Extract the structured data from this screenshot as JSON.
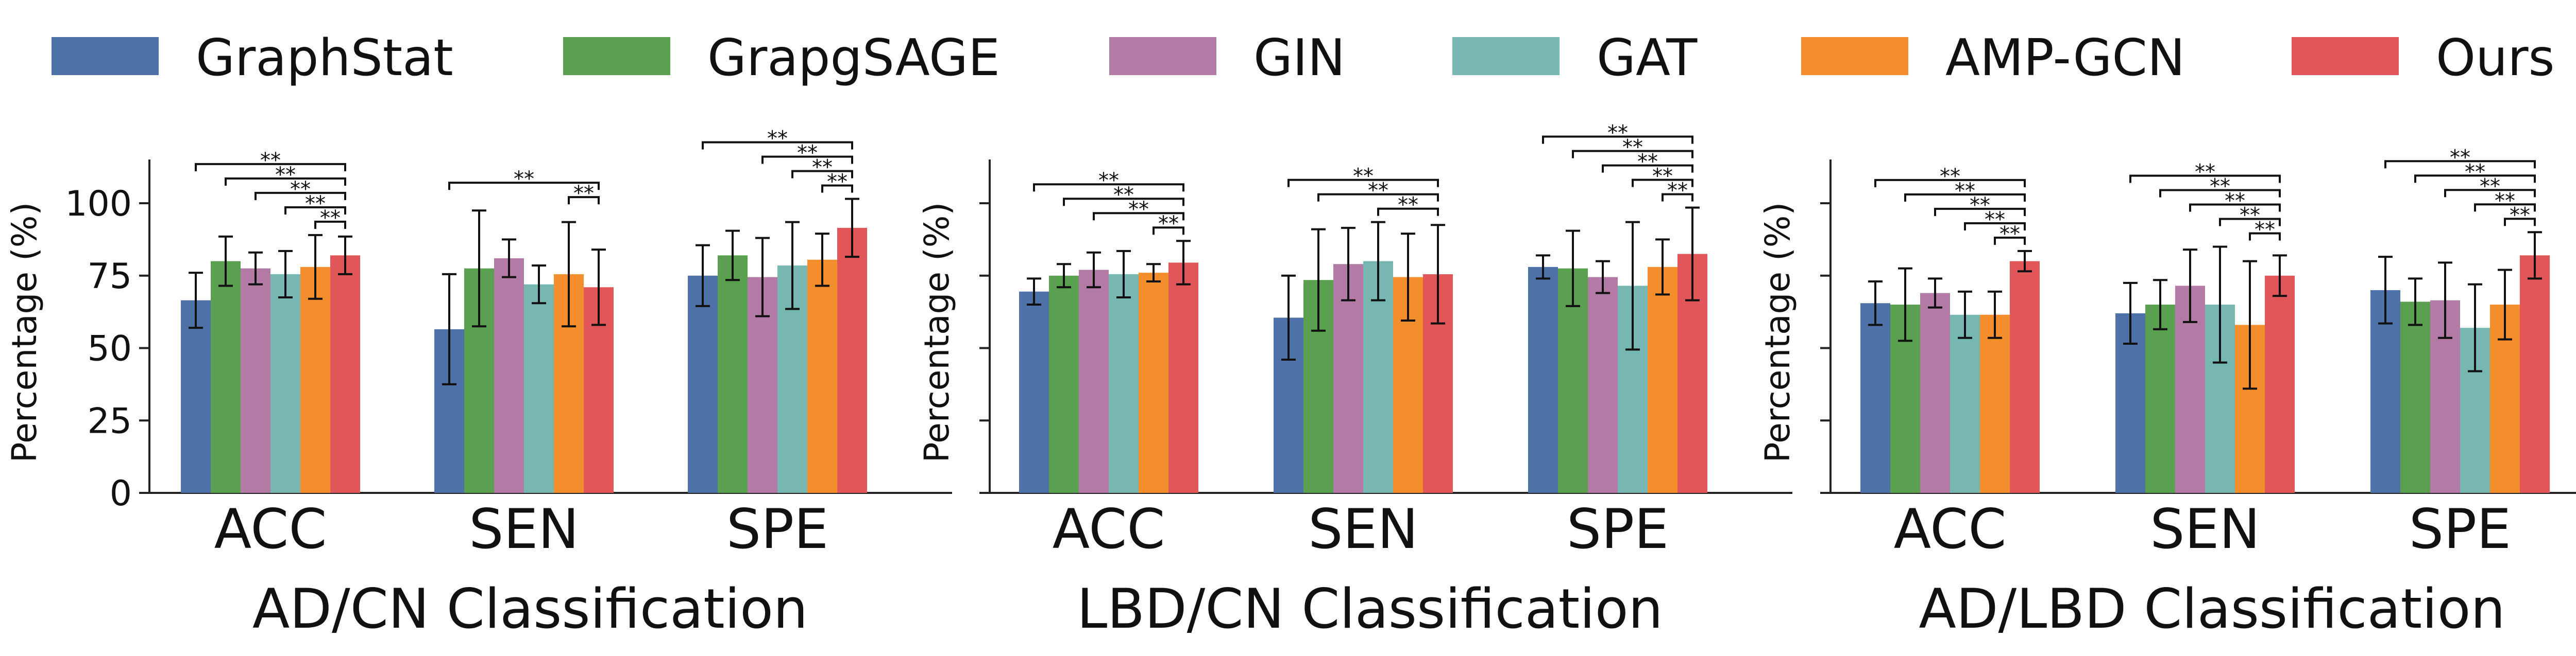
{
  "colors": {
    "GraphStat": "#4e72a8",
    "GrapgSAGE": "#5aa050",
    "GIN": "#b27aa4",
    "GAT": "#76b7b2",
    "AMP-GCN": "#f28e2b",
    "Ours": "#e15759"
  },
  "legend": [
    "GraphStat",
    "GrapgSAGE",
    "GIN",
    "GAT",
    "AMP-GCN",
    "Ours"
  ],
  "significance_label": "**",
  "chart_data": [
    {
      "type": "bar",
      "title": "AD/CN Classification",
      "xlabel": "AD/CN Classification",
      "ylabel": "Percentage (%)",
      "ylim": [
        0,
        115
      ],
      "yticks": [
        "0",
        "25",
        "50",
        "75",
        "100"
      ],
      "categories": [
        "ACC",
        "SEN",
        "SPE"
      ],
      "series": [
        {
          "name": "GraphStat",
          "values": [
            66.5,
            56.5,
            75.0
          ],
          "errors": [
            9.5,
            19.0,
            10.5
          ]
        },
        {
          "name": "GrapgSAGE",
          "values": [
            80.0,
            77.5,
            82.0
          ],
          "errors": [
            8.5,
            20.0,
            8.5
          ]
        },
        {
          "name": "GIN",
          "values": [
            77.5,
            81.0,
            74.5
          ],
          "errors": [
            5.5,
            6.5,
            13.5
          ]
        },
        {
          "name": "GAT",
          "values": [
            75.5,
            72.0,
            78.5
          ],
          "errors": [
            8.0,
            6.5,
            15.0
          ]
        },
        {
          "name": "AMP-GCN",
          "values": [
            78.0,
            75.5,
            80.5
          ],
          "errors": [
            11.0,
            18.0,
            9.0
          ]
        },
        {
          "name": "Ours",
          "values": [
            82.0,
            71.0,
            91.5
          ],
          "errors": [
            6.5,
            13.0,
            10.0
          ]
        }
      ],
      "significance": [
        {
          "category": "ACC",
          "vs": [
            "GraphStat",
            "GrapgSAGE",
            "GIN",
            "GAT",
            "AMP-GCN"
          ]
        },
        {
          "category": "SEN",
          "vs": [
            "GraphStat",
            "AMP-GCN"
          ]
        },
        {
          "category": "SPE",
          "vs": [
            "GraphStat",
            "GIN",
            "GAT",
            "AMP-GCN"
          ]
        }
      ]
    },
    {
      "type": "bar",
      "title": "LBD/CN Classification",
      "xlabel": "LBD/CN Classification",
      "ylabel": "Percentage (%)",
      "ylim": [
        0,
        115
      ],
      "yticks": [
        "",
        "",
        "",
        "",
        ""
      ],
      "categories": [
        "ACC",
        "SEN",
        "SPE"
      ],
      "series": [
        {
          "name": "GraphStat",
          "values": [
            69.5,
            60.5,
            78.0
          ],
          "errors": [
            4.5,
            14.5,
            4.0
          ]
        },
        {
          "name": "GrapgSAGE",
          "values": [
            75.0,
            73.5,
            77.5
          ],
          "errors": [
            4.0,
            17.5,
            13.0
          ]
        },
        {
          "name": "GIN",
          "values": [
            77.0,
            79.0,
            74.5
          ],
          "errors": [
            6.0,
            12.5,
            5.5
          ]
        },
        {
          "name": "GAT",
          "values": [
            75.5,
            80.0,
            71.5
          ],
          "errors": [
            8.0,
            13.5,
            22.0
          ]
        },
        {
          "name": "AMP-GCN",
          "values": [
            76.0,
            74.5,
            78.0
          ],
          "errors": [
            3.0,
            15.0,
            9.5
          ]
        },
        {
          "name": "Ours",
          "values": [
            79.5,
            75.5,
            82.5
          ],
          "errors": [
            7.5,
            17.0,
            16.0
          ]
        }
      ],
      "significance": [
        {
          "category": "ACC",
          "vs": [
            "GraphStat",
            "GrapgSAGE",
            "GIN",
            "AMP-GCN"
          ]
        },
        {
          "category": "SEN",
          "vs": [
            "GraphStat",
            "GrapgSAGE",
            "GAT"
          ]
        },
        {
          "category": "SPE",
          "vs": [
            "GraphStat",
            "GrapgSAGE",
            "GIN",
            "GAT",
            "AMP-GCN"
          ]
        }
      ]
    },
    {
      "type": "bar",
      "title": "AD/LBD Classification",
      "xlabel": "AD/LBD Classification",
      "ylabel": "Percentage (%)",
      "ylim": [
        0,
        115
      ],
      "yticks": [
        "",
        "",
        "",
        "",
        ""
      ],
      "categories": [
        "ACC",
        "SEN",
        "SPE"
      ],
      "series": [
        {
          "name": "GraphStat",
          "values": [
            65.5,
            62.0,
            70.0
          ],
          "errors": [
            7.5,
            10.5,
            11.5
          ]
        },
        {
          "name": "GrapgSAGE",
          "values": [
            65.0,
            65.0,
            66.0
          ],
          "errors": [
            12.5,
            8.5,
            8.0
          ]
        },
        {
          "name": "GIN",
          "values": [
            69.0,
            71.5,
            66.5
          ],
          "errors": [
            5.0,
            12.5,
            13.0
          ]
        },
        {
          "name": "GAT",
          "values": [
            61.5,
            65.0,
            57.0
          ],
          "errors": [
            8.0,
            20.0,
            15.0
          ]
        },
        {
          "name": "AMP-GCN",
          "values": [
            61.5,
            58.0,
            65.0
          ],
          "errors": [
            8.0,
            22.0,
            12.0
          ]
        },
        {
          "name": "Ours",
          "values": [
            80.0,
            75.0,
            82.0
          ],
          "errors": [
            3.5,
            7.0,
            8.0
          ]
        }
      ],
      "significance": [
        {
          "category": "ACC",
          "vs": [
            "GraphStat",
            "GrapgSAGE",
            "GIN",
            "GAT",
            "AMP-GCN"
          ]
        },
        {
          "category": "SEN",
          "vs": [
            "GraphStat",
            "GrapgSAGE",
            "GIN",
            "GAT",
            "AMP-GCN"
          ]
        },
        {
          "category": "SPE",
          "vs": [
            "GraphStat",
            "GrapgSAGE",
            "GIN",
            "GAT",
            "AMP-GCN"
          ]
        }
      ]
    }
  ]
}
